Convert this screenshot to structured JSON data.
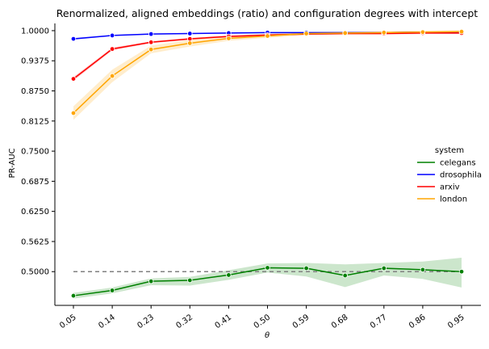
{
  "chart_data": {
    "type": "line",
    "title": "Renormalized, aligned embeddings (ratio) and configuration degrees with intercept",
    "xlabel": "θ",
    "ylabel": "PR-AUC",
    "categories": [
      "0.05",
      "0.14",
      "0.23",
      "0.32",
      "0.41",
      "0.50",
      "0.59",
      "0.68",
      "0.77",
      "0.86",
      "0.95"
    ],
    "ylim": [
      0.43,
      1.015
    ],
    "yticks": [
      "0.5000",
      "0.5625",
      "0.6250",
      "0.6875",
      "0.7500",
      "0.8125",
      "0.8750",
      "0.9375",
      "1.0000"
    ],
    "reference_line": 0.5,
    "legend": {
      "title": "system",
      "placement": "center-right"
    },
    "series": [
      {
        "name": "celegans",
        "color": "#008000",
        "values": [
          0.45,
          0.461,
          0.48,
          0.482,
          0.493,
          0.508,
          0.507,
          0.492,
          0.507,
          0.504,
          0.5
        ],
        "lower": [
          0.444,
          0.455,
          0.472,
          0.471,
          0.483,
          0.498,
          0.49,
          0.468,
          0.492,
          0.485,
          0.467
        ],
        "upper": [
          0.456,
          0.467,
          0.486,
          0.489,
          0.503,
          0.517,
          0.518,
          0.515,
          0.518,
          0.521,
          0.529
        ]
      },
      {
        "name": "drosophila",
        "color": "#0000ff",
        "values": [
          0.983,
          0.99,
          0.993,
          0.994,
          0.995,
          0.996,
          0.996,
          0.996,
          0.996,
          0.997,
          0.997
        ],
        "lower": [
          0.981,
          0.989,
          0.992,
          0.993,
          0.994,
          0.995,
          0.995,
          0.995,
          0.995,
          0.996,
          0.996
        ],
        "upper": [
          0.985,
          0.991,
          0.994,
          0.995,
          0.996,
          0.997,
          0.997,
          0.997,
          0.997,
          0.998,
          0.998
        ]
      },
      {
        "name": "arxiv",
        "color": "#ff0000",
        "values": [
          0.9,
          0.962,
          0.976,
          0.983,
          0.988,
          0.991,
          0.993,
          0.994,
          0.994,
          0.995,
          0.995
        ],
        "lower": [
          0.896,
          0.959,
          0.974,
          0.981,
          0.986,
          0.989,
          0.991,
          0.992,
          0.992,
          0.993,
          0.993
        ],
        "upper": [
          0.904,
          0.965,
          0.978,
          0.985,
          0.99,
          0.993,
          0.995,
          0.996,
          0.996,
          0.997,
          0.997
        ]
      },
      {
        "name": "london",
        "color": "#ffa500",
        "values": [
          0.829,
          0.906,
          0.961,
          0.974,
          0.984,
          0.989,
          0.994,
          0.995,
          0.996,
          0.997,
          0.998
        ],
        "lower": [
          0.815,
          0.893,
          0.953,
          0.967,
          0.979,
          0.985,
          0.991,
          0.992,
          0.993,
          0.994,
          0.995
        ],
        "upper": [
          0.843,
          0.919,
          0.969,
          0.981,
          0.989,
          0.993,
          0.997,
          0.998,
          0.999,
          1.0,
          1.001
        ]
      }
    ]
  }
}
